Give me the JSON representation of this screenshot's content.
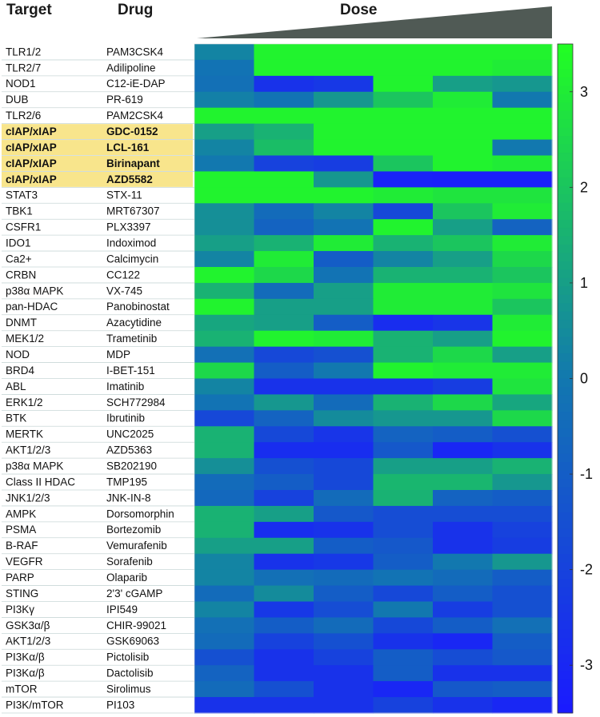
{
  "chart_data": {
    "type": "heatmap",
    "headers": {
      "target": "Target",
      "drug": "Drug",
      "dose": "Dose"
    },
    "colorbar": {
      "ticks": [
        "3",
        "2",
        "1",
        "0",
        "-1",
        "-2",
        "-3"
      ],
      "min": -3.5,
      "max": 3.5,
      "colormap": "blue-green",
      "low_color": "#1a1aff",
      "high_color": "#22ff22"
    },
    "highlight_color": "#f8e58c",
    "triangle_color": "#505a55",
    "n_doses": 6,
    "rows": [
      {
        "target": "TLR1/2",
        "drug": "PAM3CSK4",
        "highlight": false,
        "values": [
          0.3,
          3.2,
          3.2,
          3.2,
          3.2,
          3.2
        ]
      },
      {
        "target": "TLR2/7",
        "drug": "Adilipoline",
        "highlight": false,
        "values": [
          -0.2,
          3.2,
          3.2,
          3.2,
          3.2,
          3.0
        ]
      },
      {
        "target": "NOD1",
        "drug": "C12-iE-DAP",
        "highlight": false,
        "values": [
          -0.3,
          -2.6,
          -2.4,
          3.2,
          1.0,
          0.8
        ]
      },
      {
        "target": "DUB",
        "drug": "PR-619",
        "highlight": false,
        "values": [
          0.2,
          -0.2,
          0.8,
          2.0,
          3.0,
          0.0
        ]
      },
      {
        "target": "TLR2/6",
        "drug": "PAM2CSK4",
        "highlight": false,
        "values": [
          3.2,
          3.2,
          3.2,
          3.2,
          3.2,
          3.2
        ]
      },
      {
        "target": "cIAP/xIAP",
        "drug": "GDC-0152",
        "highlight": true,
        "values": [
          1.0,
          1.5,
          3.2,
          3.2,
          3.2,
          3.2
        ]
      },
      {
        "target": "cIAP/xIAP",
        "drug": "LCL-161",
        "highlight": true,
        "values": [
          0.3,
          1.8,
          3.2,
          3.2,
          3.2,
          0.0
        ]
      },
      {
        "target": "cIAP/xIAP",
        "drug": "Birinapant",
        "highlight": true,
        "values": [
          0.0,
          -2.0,
          -2.2,
          2.0,
          3.2,
          3.0
        ]
      },
      {
        "target": "cIAP/xIAP",
        "drug": "AZD5582",
        "highlight": true,
        "values": [
          3.2,
          3.2,
          0.8,
          -3.2,
          -3.3,
          -3.3
        ]
      },
      {
        "target": "STAT3",
        "drug": "STX-11",
        "highlight": false,
        "values": [
          3.2,
          3.2,
          3.2,
          3.0,
          2.8,
          2.8
        ]
      },
      {
        "target": "TBK1",
        "drug": "MRT67307",
        "highlight": false,
        "values": [
          0.6,
          -0.5,
          0.3,
          -1.8,
          2.0,
          3.0
        ]
      },
      {
        "target": "CSFR1",
        "drug": "PLX3397",
        "highlight": false,
        "values": [
          0.6,
          -0.8,
          -0.2,
          3.2,
          1.0,
          -0.8
        ]
      },
      {
        "target": "IDO1",
        "drug": "Indoximod",
        "highlight": false,
        "values": [
          1.0,
          1.5,
          3.0,
          1.5,
          2.0,
          3.0
        ]
      },
      {
        "target": "Ca2+",
        "drug": "Calcimycin",
        "highlight": false,
        "values": [
          0.3,
          3.0,
          -1.0,
          0.3,
          1.0,
          2.5
        ]
      },
      {
        "target": "CRBN",
        "drug": "CC122",
        "highlight": false,
        "values": [
          3.2,
          2.5,
          -0.2,
          1.5,
          1.5,
          2.0
        ]
      },
      {
        "target": "p38α MAPK",
        "drug": "VX-745",
        "highlight": false,
        "values": [
          1.5,
          -0.5,
          1.0,
          3.0,
          3.0,
          2.8
        ]
      },
      {
        "target": "pan-HDAC",
        "drug": "Panobinostat",
        "highlight": false,
        "values": [
          3.2,
          1.0,
          1.0,
          3.0,
          3.0,
          2.0
        ]
      },
      {
        "target": "DNMT",
        "drug": "Azacytidine",
        "highlight": false,
        "values": [
          1.2,
          1.0,
          -1.0,
          -2.8,
          -2.5,
          3.0
        ]
      },
      {
        "target": "MEK1/2",
        "drug": "Trametinib",
        "highlight": false,
        "values": [
          1.5,
          3.2,
          3.0,
          1.5,
          1.0,
          3.2
        ]
      },
      {
        "target": "NOD",
        "drug": "MDP",
        "highlight": false,
        "values": [
          -0.3,
          -1.8,
          -1.5,
          1.5,
          2.5,
          1.0
        ]
      },
      {
        "target": "BRD4",
        "drug": "I-BET-151",
        "highlight": false,
        "values": [
          2.5,
          -1.0,
          0.0,
          3.2,
          3.0,
          3.0
        ]
      },
      {
        "target": "ABL",
        "drug": "Imatinib",
        "highlight": false,
        "values": [
          0.3,
          -2.6,
          -2.6,
          -2.6,
          -2.2,
          2.8
        ]
      },
      {
        "target": "ERK1/2",
        "drug": "SCH772984",
        "highlight": false,
        "values": [
          -0.2,
          0.8,
          -0.5,
          1.5,
          2.5,
          1.2
        ]
      },
      {
        "target": "BTK",
        "drug": "Ibrutinib",
        "highlight": false,
        "values": [
          -1.8,
          -0.8,
          0.5,
          0.8,
          0.8,
          2.5
        ]
      },
      {
        "target": "MERTK",
        "drug": "UNC2025",
        "highlight": false,
        "values": [
          1.5,
          -1.8,
          -2.5,
          -0.8,
          -1.0,
          -1.5
        ]
      },
      {
        "target": "AKT1/2/3",
        "drug": "AZD5363",
        "highlight": false,
        "values": [
          1.5,
          -2.8,
          -2.8,
          -1.2,
          -3.0,
          -2.6
        ]
      },
      {
        "target": "p38α MAPK",
        "drug": "SB202190",
        "highlight": false,
        "values": [
          0.6,
          -1.5,
          -1.8,
          1.0,
          1.0,
          1.5
        ]
      },
      {
        "target": "Class II HDAC",
        "drug": "TMP195",
        "highlight": false,
        "values": [
          -0.5,
          -1.0,
          -1.8,
          1.6,
          1.6,
          0.8
        ]
      },
      {
        "target": "JNK1/2/3",
        "drug": "JNK-IN-8",
        "highlight": false,
        "values": [
          -0.6,
          -2.0,
          -0.5,
          1.5,
          -0.8,
          -1.0
        ]
      },
      {
        "target": "AMPK",
        "drug": "Dorsomorphin",
        "highlight": false,
        "values": [
          1.5,
          1.0,
          -1.2,
          -1.6,
          -1.6,
          -1.6
        ]
      },
      {
        "target": "PSMA",
        "drug": "Bortezomib",
        "highlight": false,
        "values": [
          1.5,
          -2.8,
          -2.6,
          -1.6,
          -2.6,
          -2.0
        ]
      },
      {
        "target": "B-RAF",
        "drug": "Vemurafenib",
        "highlight": false,
        "values": [
          1.0,
          1.0,
          -1.0,
          -1.2,
          -2.6,
          -2.2
        ]
      },
      {
        "target": "VEGFR",
        "drug": "Sorafenib",
        "highlight": false,
        "values": [
          0.3,
          -2.6,
          -2.4,
          -1.0,
          0.0,
          0.8
        ]
      },
      {
        "target": "PARP",
        "drug": "Olaparib",
        "highlight": false,
        "values": [
          0.3,
          -0.3,
          -0.5,
          -0.2,
          -0.5,
          -1.0
        ]
      },
      {
        "target": "STING",
        "drug": "2'3' cGAMP",
        "highlight": false,
        "values": [
          -0.5,
          0.5,
          -1.0,
          -1.8,
          -1.0,
          -1.5
        ]
      },
      {
        "target": "PI3Kγ",
        "drug": "IPI549",
        "highlight": false,
        "values": [
          0.3,
          -2.4,
          -1.6,
          0.0,
          -2.2,
          -1.5
        ]
      },
      {
        "target": "GSK3α/β",
        "drug": "CHIR-99021",
        "highlight": false,
        "values": [
          -0.3,
          -1.0,
          -0.5,
          -1.8,
          -1.0,
          -0.3
        ]
      },
      {
        "target": "AKT1/2/3",
        "drug": "GSK69063",
        "highlight": false,
        "values": [
          -0.5,
          -2.0,
          -1.5,
          -2.6,
          -3.0,
          -1.0
        ]
      },
      {
        "target": "PI3Kα/β",
        "drug": "Pictolisib",
        "highlight": false,
        "values": [
          -1.5,
          -2.6,
          -2.0,
          -1.0,
          -1.6,
          -1.2
        ]
      },
      {
        "target": "PI3Kα/β",
        "drug": "Dactolisib",
        "highlight": false,
        "values": [
          -0.8,
          -2.6,
          -2.6,
          -1.0,
          -2.6,
          -2.6
        ]
      },
      {
        "target": "mTOR",
        "drug": "Sirolimus",
        "highlight": false,
        "values": [
          -0.5,
          -1.5,
          -2.6,
          -3.0,
          -1.2,
          -1.0
        ]
      },
      {
        "target": "PI3K/mTOR",
        "drug": "PI103",
        "highlight": false,
        "values": [
          -2.6,
          -2.6,
          -2.6,
          -2.0,
          -2.6,
          -3.0
        ]
      }
    ]
  }
}
